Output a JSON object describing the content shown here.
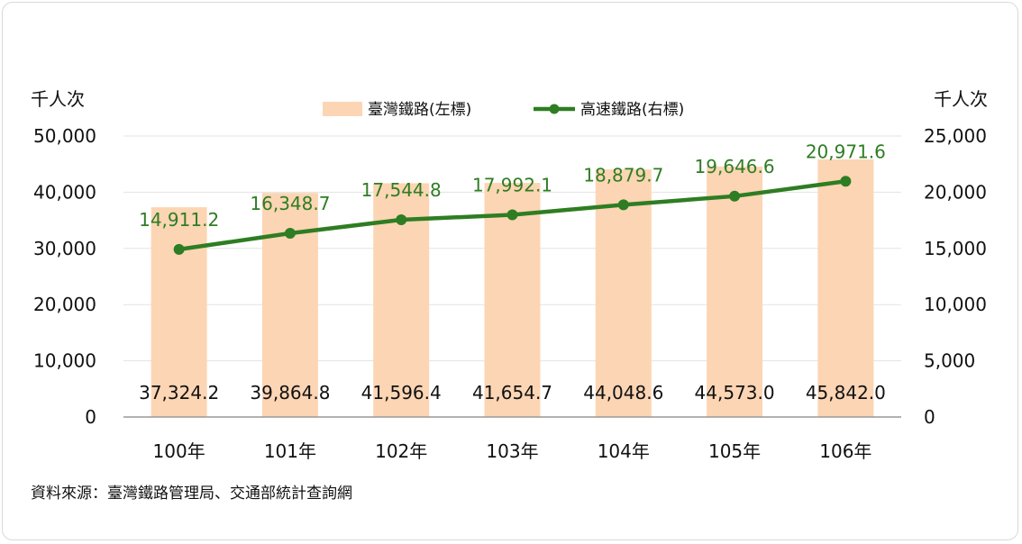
{
  "colors": {
    "bar": "#fcd5b4",
    "line": "#2e7d22",
    "axis": "#999999",
    "text": "#111111"
  },
  "source_note": "資料來源：臺灣鐵路管理局、交通部統計查詢網",
  "chart_data": {
    "type": "bar",
    "title": "",
    "categories": [
      "100年",
      "101年",
      "102年",
      "103年",
      "104年",
      "105年",
      "106年"
    ],
    "left_axis": {
      "unit_label": "千人次",
      "ylim": [
        0,
        50000
      ],
      "ticks": [
        "0",
        "10,000",
        "20,000",
        "30,000",
        "40,000",
        "50,000"
      ],
      "tick_values": [
        0,
        10000,
        20000,
        30000,
        40000,
        50000
      ]
    },
    "right_axis": {
      "unit_label": "千人次",
      "ylim": [
        0,
        25000
      ],
      "ticks": [
        "0",
        "5,000",
        "10,000",
        "15,000",
        "20,000",
        "25,000"
      ]
    },
    "legend_position": "top-center",
    "grid": "horizontal",
    "series": [
      {
        "name": "臺灣鐵路(左標)",
        "type": "bar",
        "axis": "left",
        "values": [
          37324.2,
          39864.8,
          41596.4,
          41654.7,
          44048.6,
          44573.0,
          45842.0
        ],
        "labels": [
          "37,324.2",
          "39,864.8",
          "41,596.4",
          "41,654.7",
          "44,048.6",
          "44,573.0",
          "45,842.0"
        ]
      },
      {
        "name": "高速鐵路(右標)",
        "type": "line",
        "axis": "right",
        "values": [
          14911.2,
          16348.7,
          17544.8,
          17992.1,
          18879.7,
          19646.6,
          20971.6
        ],
        "labels": [
          "14,911.2",
          "16,348.7",
          "17,544.8",
          "17,992.1",
          "18,879.7",
          "19,646.6",
          "20,971.6"
        ]
      }
    ]
  }
}
